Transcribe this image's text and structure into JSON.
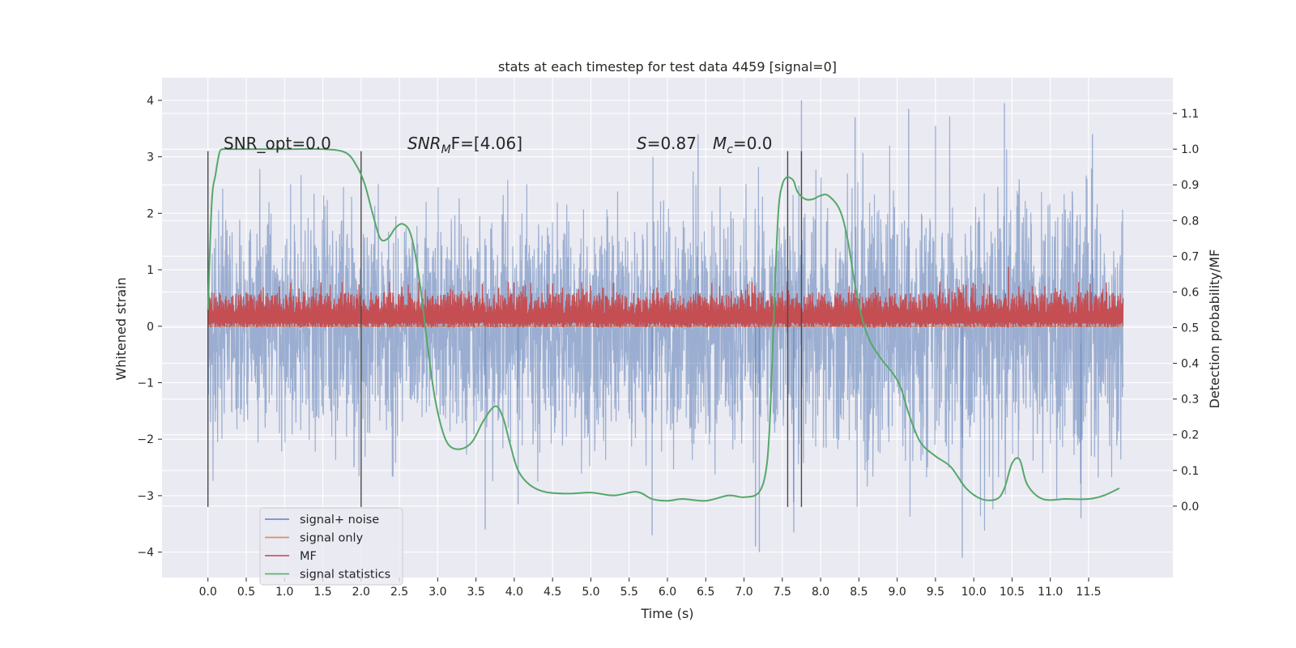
{
  "chart_data": {
    "type": "line",
    "title": "stats at each timestep for test data 4459 [signal=0]",
    "xlabel": "Time (s)",
    "ylabel": "Whitened strain",
    "y2label": "Detection probability/MF",
    "xlim": [
      -0.6,
      12.6
    ],
    "ylim": [
      -4.45,
      4.4
    ],
    "y2lim": [
      -0.2,
      1.2
    ],
    "x_ticks": [
      0.0,
      0.5,
      1.0,
      1.5,
      2.0,
      2.5,
      3.0,
      3.5,
      4.0,
      4.5,
      5.0,
      5.5,
      6.0,
      6.5,
      7.0,
      7.5,
      8.0,
      8.5,
      9.0,
      9.5,
      10.0,
      10.5,
      11.0,
      11.5
    ],
    "x_tick_labels": [
      "0.0",
      "0.5",
      "1.0",
      "1.5",
      "2.0",
      "2.5",
      "3.0",
      "3.5",
      "4.0",
      "4.5",
      "5.0",
      "5.5",
      "6.0",
      "6.5",
      "7.0",
      "7.5",
      "8.0",
      "8.5",
      "9.0",
      "9.5",
      "10.0",
      "10.5",
      "11.0",
      "11.5"
    ],
    "y_ticks": [
      -4,
      -3,
      -2,
      -1,
      0,
      1,
      2,
      3,
      4
    ],
    "y_tick_labels": [
      "−4",
      "−3",
      "−2",
      "−1",
      "0",
      "1",
      "2",
      "3",
      "4"
    ],
    "y2_ticks": [
      0.0,
      0.1,
      0.2,
      0.3,
      0.4,
      0.5,
      0.6,
      0.7,
      0.8,
      0.9,
      1.0,
      1.1
    ],
    "y2_tick_labels": [
      "0.0",
      "0.1",
      "0.2",
      "0.3",
      "0.4",
      "0.5",
      "0.6",
      "0.7",
      "0.8",
      "0.9",
      "1.0",
      "1.1"
    ],
    "grid": true,
    "legend_placement": "lower-left",
    "annotations": {
      "snr_opt": "SNR_opt=0.0",
      "snr_mf_main": "SNR",
      "snr_mf_sub": "M",
      "snr_mf_rest": "F=[4.06]",
      "s_main": "S",
      "s_rest": "=0.87",
      "mc_main": "M",
      "mc_sub": "c",
      "mc_rest": "=0.0"
    },
    "vlines": {
      "x": [
        0.0,
        2.0,
        7.57,
        7.75
      ],
      "y_range": [
        -3.2,
        3.1
      ]
    },
    "series": [
      {
        "name": "signal+ noise",
        "color": "#4c72b0",
        "opacity": 0.5,
        "x_range": [
          0.0,
          11.95
        ],
        "typical_range": [
          -2.1,
          2.1
        ],
        "extremes": [
          -4.1,
          4.0
        ],
        "spikes": [
          {
            "x": 7.75,
            "y": 4.0
          },
          {
            "x": 9.15,
            "y": 3.85
          },
          {
            "x": 10.4,
            "y": 3.95
          },
          {
            "x": 7.2,
            "y": -4.0
          },
          {
            "x": 9.85,
            "y": -4.1
          },
          {
            "x": 7.65,
            "y": -3.65
          },
          {
            "x": 3.62,
            "y": -3.6
          },
          {
            "x": 4.05,
            "y": -3.15
          },
          {
            "x": 5.8,
            "y": -3.7
          },
          {
            "x": 7.15,
            "y": -3.9
          },
          {
            "x": 11.4,
            "y": -3.4
          },
          {
            "x": 8.45,
            "y": 3.7
          },
          {
            "x": 11.55,
            "y": 3.4
          },
          {
            "x": 6.4,
            "y": 3.4
          },
          {
            "x": 9.5,
            "y": 3.55
          }
        ]
      },
      {
        "name": "signal only",
        "color": "#dd8452",
        "x_range": [
          0.0,
          11.95
        ],
        "values_constant": 0.0
      },
      {
        "name": "MF",
        "color": "#c44e52",
        "axis": "y2",
        "x_range": [
          0.0,
          11.95
        ],
        "typical_range": [
          0.5,
          0.6
        ],
        "peak": {
          "x": 10.45,
          "y": 0.67
        }
      },
      {
        "name": "signal statistics",
        "color": "#55a868",
        "axis": "y2",
        "x": [
          0.0,
          0.05,
          0.1,
          0.15,
          0.2,
          0.3,
          0.5,
          1.0,
          1.5,
          1.8,
          1.95,
          2.05,
          2.15,
          2.25,
          2.35,
          2.45,
          2.55,
          2.65,
          2.75,
          2.85,
          2.95,
          3.05,
          3.15,
          3.3,
          3.45,
          3.6,
          3.75,
          3.85,
          3.95,
          4.05,
          4.2,
          4.4,
          4.7,
          5.0,
          5.3,
          5.6,
          5.8,
          6.0,
          6.2,
          6.5,
          6.8,
          7.0,
          7.2,
          7.3,
          7.35,
          7.4,
          7.45,
          7.5,
          7.55,
          7.6,
          7.65,
          7.7,
          7.8,
          7.9,
          8.0,
          8.1,
          8.25,
          8.35,
          8.45,
          8.55,
          8.65,
          8.8,
          8.95,
          9.05,
          9.15,
          9.3,
          9.5,
          9.7,
          9.9,
          10.1,
          10.3,
          10.4,
          10.5,
          10.6,
          10.7,
          10.9,
          11.2,
          11.5,
          11.7,
          11.9
        ],
        "values": [
          0.55,
          0.85,
          0.93,
          0.99,
          1.0,
          1.0,
          1.0,
          1.0,
          1.0,
          0.99,
          0.95,
          0.9,
          0.82,
          0.75,
          0.75,
          0.78,
          0.79,
          0.76,
          0.65,
          0.48,
          0.32,
          0.22,
          0.17,
          0.16,
          0.18,
          0.24,
          0.28,
          0.25,
          0.17,
          0.1,
          0.06,
          0.04,
          0.035,
          0.038,
          0.03,
          0.04,
          0.02,
          0.015,
          0.02,
          0.015,
          0.03,
          0.025,
          0.04,
          0.12,
          0.3,
          0.6,
          0.83,
          0.9,
          0.92,
          0.92,
          0.91,
          0.88,
          0.86,
          0.86,
          0.87,
          0.87,
          0.83,
          0.75,
          0.62,
          0.52,
          0.46,
          0.41,
          0.37,
          0.33,
          0.26,
          0.18,
          0.14,
          0.11,
          0.05,
          0.02,
          0.02,
          0.05,
          0.12,
          0.13,
          0.06,
          0.02,
          0.02,
          0.02,
          0.03,
          0.05
        ]
      }
    ]
  }
}
